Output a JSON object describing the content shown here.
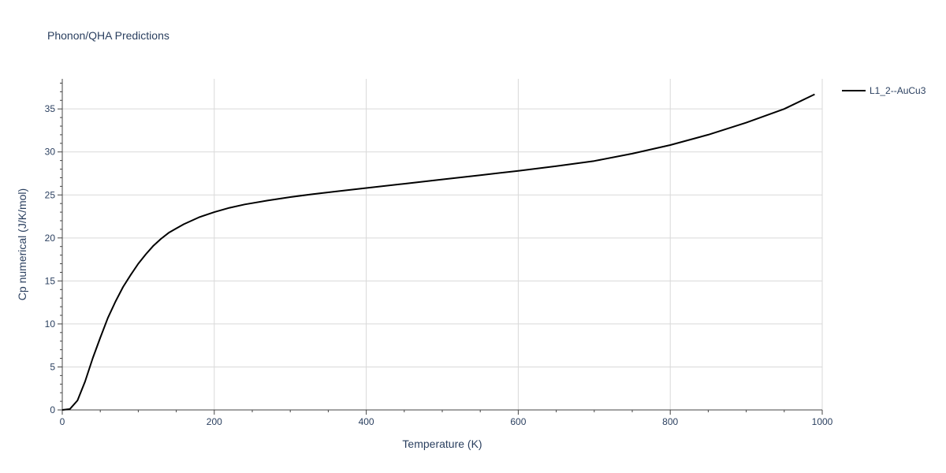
{
  "chart_data": {
    "type": "line",
    "title": "Phonon/QHA Predictions",
    "xlabel": "Temperature (K)",
    "ylabel": "Cp numerical (J/K/mol)",
    "xlim": [
      0,
      1000
    ],
    "ylim": [
      0,
      38.5
    ],
    "x_ticks": [
      0,
      200,
      400,
      600,
      800,
      1000
    ],
    "y_ticks": [
      0,
      5,
      10,
      15,
      20,
      25,
      30,
      35
    ],
    "x_minor_step": 50,
    "y_minor_step": 1,
    "grid": true,
    "legend_position": "top-right",
    "series": [
      {
        "name": "L1_2--AuCu3",
        "color": "#000000",
        "x": [
          0,
          10,
          20,
          30,
          40,
          50,
          60,
          70,
          80,
          90,
          100,
          110,
          120,
          130,
          140,
          150,
          160,
          180,
          200,
          220,
          240,
          270,
          300,
          330,
          360,
          400,
          450,
          500,
          550,
          600,
          650,
          700,
          750,
          800,
          850,
          900,
          950,
          990
        ],
        "y": [
          0,
          0.1,
          1.1,
          3.3,
          6.0,
          8.4,
          10.7,
          12.6,
          14.3,
          15.7,
          17.0,
          18.1,
          19.1,
          19.9,
          20.6,
          21.1,
          21.6,
          22.4,
          23.0,
          23.5,
          23.9,
          24.35,
          24.75,
          25.1,
          25.4,
          25.8,
          26.3,
          26.8,
          27.3,
          27.8,
          28.35,
          28.95,
          29.8,
          30.8,
          32.0,
          33.4,
          35.0,
          36.7
        ]
      }
    ]
  }
}
